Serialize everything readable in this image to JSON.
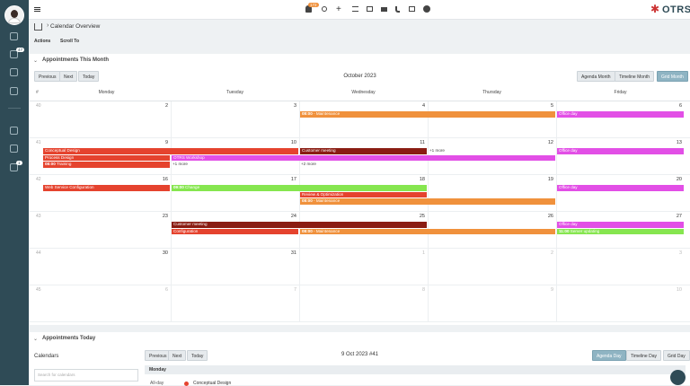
{
  "topbar": {
    "notification_count": "172",
    "logo": "OTRS"
  },
  "sidebar": {
    "badges": [
      "47",
      "1"
    ]
  },
  "breadcrumb": {
    "title": "Calendar Overview"
  },
  "toolbar": {
    "actions": "Actions",
    "scroll_to": "Scroll To"
  },
  "month_panel": {
    "title": "Appointments This Month",
    "nav": [
      "Previous",
      "Next",
      "Today"
    ],
    "period": "October 2023",
    "views": [
      "Agenda Month",
      "Timeline Month",
      "Grid Month"
    ],
    "active_view": 2,
    "week_header": "#",
    "weekdays": [
      "Monday",
      "Tuesday",
      "Wednesday",
      "Thursday",
      "Friday"
    ],
    "weeks": [
      {
        "number": "40",
        "days": [
          "2",
          "3",
          "4",
          "5",
          "6"
        ],
        "outside_month": [
          false,
          false,
          false,
          false,
          false
        ],
        "items": [
          {
            "time": "08:00",
            "title": "- Maintenance",
            "from": 2,
            "to": 3,
            "color": "#f0913c"
          },
          {
            "title": "Office day",
            "from": 4,
            "to": 4,
            "color": "#e24fe6"
          }
        ]
      },
      {
        "number": "41",
        "days": [
          "9",
          "10",
          "11",
          "12",
          "13"
        ],
        "outside_month": [
          false,
          false,
          false,
          false,
          false
        ],
        "items": [
          {
            "title": "Conceptual Design",
            "from": 0,
            "to": 1,
            "color": "#e5432e"
          },
          {
            "title": "Customer meeting",
            "from": 2,
            "to": 2,
            "color": "#8a1c12"
          },
          {
            "more": "+1 more",
            "from": 3,
            "to": 3
          },
          {
            "title": "Office day",
            "from": 4,
            "to": 4,
            "color": "#e24fe6"
          },
          {
            "title": "Process Design",
            "from": 0,
            "to": 0,
            "color": "#e5432e"
          },
          {
            "title": "OTRS Workshop",
            "from": 1,
            "to": 3,
            "color": "#e24fe6"
          },
          {
            "time": "08:00",
            "title": "Training",
            "from": 0,
            "to": 0,
            "color": "#e5432e"
          },
          {
            "more": "+1 more",
            "from": 1,
            "to": 1
          },
          {
            "more": "+2 more",
            "from": 2,
            "to": 2
          }
        ]
      },
      {
        "number": "42",
        "days": [
          "16",
          "17",
          "18",
          "19",
          "20"
        ],
        "outside_month": [
          false,
          false,
          false,
          false,
          false
        ],
        "items": [
          {
            "title": "Web Service Configuration",
            "from": 0,
            "to": 0,
            "color": "#e5432e"
          },
          {
            "time": "09:00",
            "title": "Change",
            "from": 1,
            "to": 2,
            "color": "#86e64f"
          },
          {
            "title": "Office day",
            "from": 4,
            "to": 4,
            "color": "#e24fe6"
          },
          {
            "title": "Review & Optimization",
            "from": 2,
            "to": 2,
            "color": "#e5432e"
          },
          {
            "time": "08:00",
            "title": "- Maintenance",
            "from": 2,
            "to": 3,
            "color": "#f0913c"
          }
        ]
      },
      {
        "number": "43",
        "days": [
          "23",
          "24",
          "25",
          "26",
          "27"
        ],
        "outside_month": [
          false,
          false,
          false,
          false,
          false
        ],
        "items": [
          {
            "title": "Customer meeting",
            "from": 1,
            "to": 2,
            "color": "#8a1c12"
          },
          {
            "title": "Office day",
            "from": 4,
            "to": 4,
            "color": "#e24fe6"
          },
          {
            "title": "Configuration",
            "from": 1,
            "to": 1,
            "color": "#e5432e"
          },
          {
            "time": "08:00",
            "title": "- Maintenance",
            "from": 2,
            "to": 3,
            "color": "#f0913c"
          },
          {
            "time": "11:00",
            "title": "Server updating",
            "from": 4,
            "to": 4,
            "color": "#86e64f"
          }
        ]
      },
      {
        "number": "44",
        "days": [
          "30",
          "31",
          "1",
          "2",
          "3"
        ],
        "outside_month": [
          false,
          false,
          true,
          true,
          true
        ],
        "items": []
      },
      {
        "number": "45",
        "days": [
          "6",
          "7",
          "8",
          "9",
          "10"
        ],
        "outside_month": [
          true,
          true,
          true,
          true,
          true
        ],
        "items": []
      }
    ]
  },
  "today_panel": {
    "title": "Appointments Today",
    "calendars_label": "Calendars",
    "search_placeholder": "Search for calendars",
    "nav": [
      "Previous",
      "Next",
      "Today"
    ],
    "period": "9 Oct 2023 #41",
    "views": [
      "Agenda Day",
      "Timeline Day",
      "Grid Day"
    ],
    "active_view": 0,
    "day_header": "Monday",
    "rows": [
      {
        "time": "All-day",
        "title": "Conceptual Design",
        "color": "#e5432e"
      }
    ]
  }
}
